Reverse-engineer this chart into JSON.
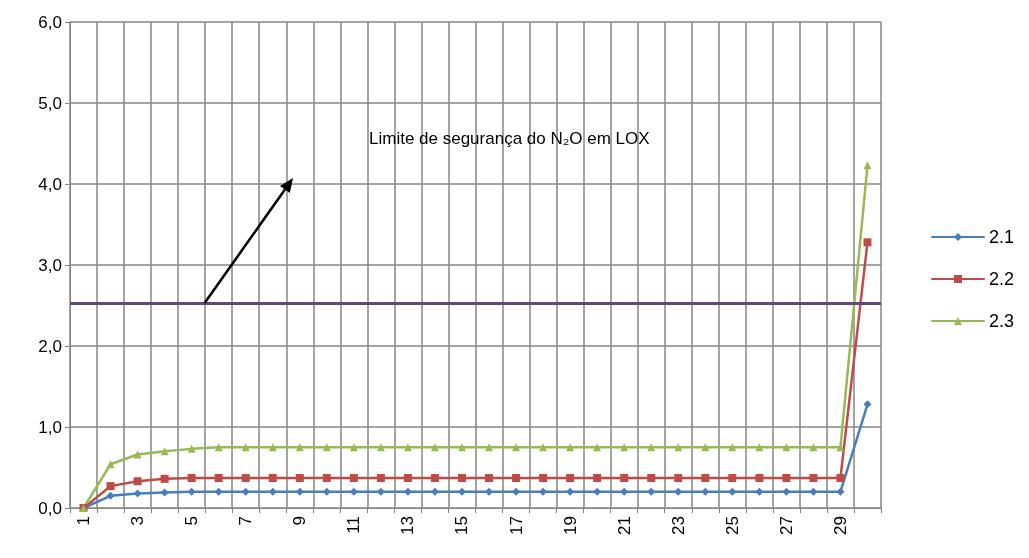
{
  "chart_data": {
    "type": "line",
    "categories": [
      "1",
      null,
      "3",
      null,
      "5",
      null,
      "7",
      null,
      "9",
      null,
      "11",
      null,
      "13",
      null,
      "15",
      null,
      "17",
      null,
      "19",
      null,
      "21",
      null,
      "23",
      null,
      "25",
      null,
      "27",
      null,
      "29",
      null
    ],
    "series": [
      {
        "name": "2.1",
        "color": "#4a7ebb",
        "marker": "diamond",
        "values": [
          0,
          0.15,
          0.18,
          0.19,
          0.2,
          0.2,
          0.2,
          0.2,
          0.2,
          0.2,
          0.2,
          0.2,
          0.2,
          0.2,
          0.2,
          0.2,
          0.2,
          0.2,
          0.2,
          0.2,
          0.2,
          0.2,
          0.2,
          0.2,
          0.2,
          0.2,
          0.2,
          0.2,
          0.2,
          1.28
        ]
      },
      {
        "name": "2.2",
        "color": "#be4b48",
        "marker": "square",
        "values": [
          0,
          0.27,
          0.33,
          0.36,
          0.37,
          0.37,
          0.37,
          0.37,
          0.37,
          0.37,
          0.37,
          0.37,
          0.37,
          0.37,
          0.37,
          0.37,
          0.37,
          0.37,
          0.37,
          0.37,
          0.37,
          0.37,
          0.37,
          0.37,
          0.37,
          0.37,
          0.37,
          0.37,
          0.37,
          3.28
        ]
      },
      {
        "name": "2.3",
        "color": "#98b954",
        "marker": "triangle",
        "values": [
          0,
          0.54,
          0.66,
          0.7,
          0.73,
          0.75,
          0.75,
          0.75,
          0.75,
          0.75,
          0.75,
          0.75,
          0.75,
          0.75,
          0.75,
          0.75,
          0.75,
          0.75,
          0.75,
          0.75,
          0.75,
          0.75,
          0.75,
          0.75,
          0.75,
          0.75,
          0.75,
          0.75,
          0.75,
          4.23
        ]
      }
    ],
    "ylim": [
      0,
      6
    ],
    "yticks": [
      {
        "value": 0,
        "label": "0,0"
      },
      {
        "value": 1,
        "label": "1,0"
      },
      {
        "value": 2,
        "label": "2,0"
      },
      {
        "value": 3,
        "label": "3,0"
      },
      {
        "value": 4,
        "label": "4,0"
      },
      {
        "value": 5,
        "label": "5,0"
      },
      {
        "value": 6,
        "label": "6,0"
      }
    ],
    "ref_lines": [
      {
        "axis": "y",
        "value": 2.53,
        "color": "#5f497a",
        "line_style": "solid"
      }
    ],
    "annotations": [
      "Limite de segurança do N₂O em LOX"
    ],
    "grid": true,
    "legend": "right",
    "line_style": "solid"
  }
}
